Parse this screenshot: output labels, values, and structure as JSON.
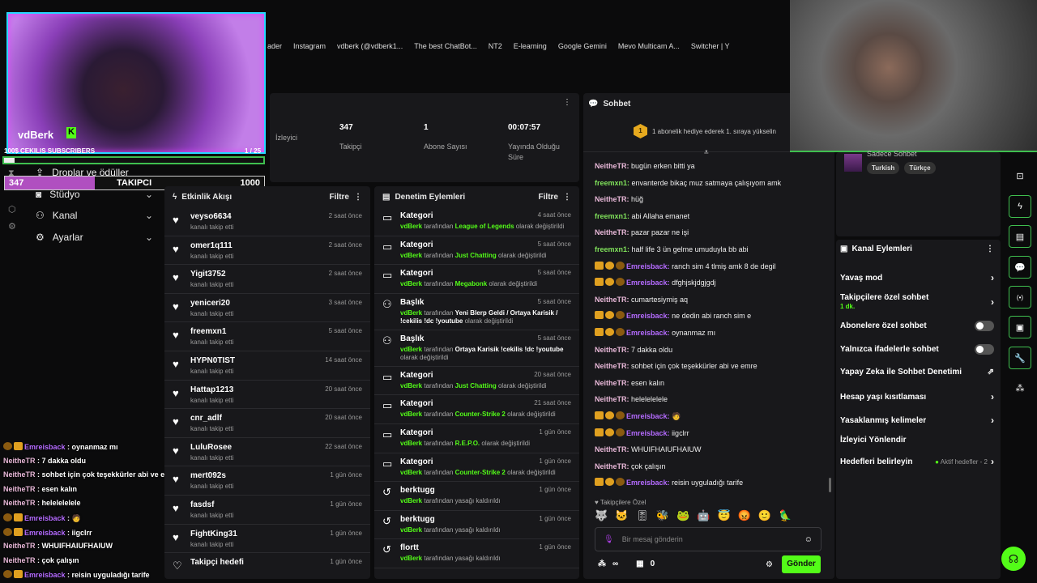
{
  "bookmarks": [
    "ader",
    "Instagram",
    "vdberk (@vdberk1...",
    "The best ChatBot...",
    "NT2",
    "E-learning",
    "Google Gemini",
    "Mevo Multicam A...",
    "Switcher | Y"
  ],
  "overlay": {
    "streamer": "vdBerk",
    "goal_label": "100$ CEKILIS SUBSCRIBERS",
    "goal_count": "1 / 25",
    "goal_progress": 0.04,
    "follower_current": "347",
    "follower_label": "TAKIPCI",
    "follower_target": "1000",
    "follower_progress": 0.347
  },
  "nav": [
    "Droplar ve ödüller",
    "Stüdyo",
    "Kanal",
    "Ayarlar"
  ],
  "stats": [
    {
      "value": "",
      "label": "İzleyici"
    },
    {
      "value": "347",
      "label": "Takipçi"
    },
    {
      "value": "1",
      "label": "Abone Sayısı"
    },
    {
      "value": "00:07:57",
      "label": "Yayında Olduğu Süre"
    }
  ],
  "activity": {
    "title": "Etkinlik Akışı",
    "filter": "Filtre",
    "items": [
      {
        "name": "veyso6634",
        "sub": "kanalı takip etti",
        "time": "2 saat önce"
      },
      {
        "name": "omer1q111",
        "sub": "kanalı takip etti",
        "time": "2 saat önce"
      },
      {
        "name": "Yigit3752",
        "sub": "kanalı takip etti",
        "time": "2 saat önce"
      },
      {
        "name": "yeniceri20",
        "sub": "kanalı takip etti",
        "time": "3 saat önce"
      },
      {
        "name": "freemxn1",
        "sub": "kanalı takip etti",
        "time": "5 saat önce"
      },
      {
        "name": "HYPN0TIST",
        "sub": "kanalı takip etti",
        "time": "14 saat önce"
      },
      {
        "name": "Hattap1213",
        "sub": "kanalı takip etti",
        "time": "20 saat önce"
      },
      {
        "name": "cnr_adlf",
        "sub": "kanalı takip etti",
        "time": "20 saat önce"
      },
      {
        "name": "LuluRosee",
        "sub": "kanalı takip etti",
        "time": "22 saat önce"
      },
      {
        "name": "mert092s",
        "sub": "kanalı takip etti",
        "time": "1 gün önce"
      },
      {
        "name": "fasdsf",
        "sub": "kanalı takip etti",
        "time": "1 gün önce"
      },
      {
        "name": "FightKing31",
        "sub": "kanalı takip etti",
        "time": "1 gün önce"
      },
      {
        "name": "Takipçi hedefi",
        "sub": "",
        "time": "1 gün önce"
      }
    ]
  },
  "moderation": {
    "title": "Denetim Eylemleri",
    "filter": "Filtre",
    "by": "vdBerk",
    "tarafindan": "tarafından",
    "items": [
      {
        "type": "Kategori",
        "value": "League of Legends",
        "suffix": "olarak değiştirildi",
        "time": "4 saat önce"
      },
      {
        "type": "Kategori",
        "value": "Just Chatting",
        "suffix": "olarak değiştirildi",
        "time": "5 saat önce"
      },
      {
        "type": "Kategori",
        "value": "Megabonk",
        "suffix": "olarak değiştirildi",
        "time": "5 saat önce"
      },
      {
        "type": "Başlık",
        "value": "Yeni Blerp Geldi / Ortaya Karisik / !cekilis !dc !youtube",
        "suffix": "olarak değiştirildi",
        "time": "5 saat önce"
      },
      {
        "type": "Başlık",
        "value": "Ortaya Karisik !cekilis !dc !youtube",
        "suffix": "olarak değiştirildi",
        "time": "5 saat önce"
      },
      {
        "type": "Kategori",
        "value": "Just Chatting",
        "suffix": "olarak değiştirildi",
        "time": "20 saat önce"
      },
      {
        "type": "Kategori",
        "value": "Counter-Strike 2",
        "suffix": "olarak değiştirildi",
        "time": "21 saat önce"
      },
      {
        "type": "Kategori",
        "value": "R.E.P.O.",
        "suffix": "olarak değiştirildi",
        "time": "1 gün önce"
      },
      {
        "type": "Kategori",
        "value": "Counter-Strike 2",
        "suffix": "olarak değiştirildi",
        "time": "1 gün önce"
      },
      {
        "type": "berktugg",
        "value": "",
        "suffix": "yasağı kaldırıldı",
        "time": "1 gün önce"
      },
      {
        "type": "berktugg",
        "value": "",
        "suffix": "yasağı kaldırıldı",
        "time": "1 gün önce"
      },
      {
        "type": "flortt",
        "value": "",
        "suffix": "yasağı kaldırıldı",
        "time": "1 gün önce"
      }
    ]
  },
  "chat": {
    "title": "Sohbet",
    "promo_rank": "1",
    "promo": "1 abonelik hediye ederek 1. sıraya yükselin",
    "messages": [
      {
        "user": "NeitheTR",
        "c": "u1",
        "badges": 0,
        "text": "bugün erken bitti ya"
      },
      {
        "user": "freemxn1",
        "c": "u2",
        "badges": 0,
        "text": "envanterde bikaç muz satmaya çalışıyom amk"
      },
      {
        "user": "NeitheTR",
        "c": "u1",
        "badges": 0,
        "text": "hüğ"
      },
      {
        "user": "freemxn1",
        "c": "u2",
        "badges": 0,
        "text": "abi Allaha emanet"
      },
      {
        "user": "NeitheTR",
        "c": "u1",
        "badges": 0,
        "text": "pazar pazar ne işi"
      },
      {
        "user": "freemxn1",
        "c": "u2",
        "badges": 0,
        "text": "half life 3 ün gelme umuduyla bb abi"
      },
      {
        "user": "Emreisback",
        "c": "u3",
        "badges": 1,
        "text": "ranch sim 4 tlmiş amk 8 de degil"
      },
      {
        "user": "Emreisback",
        "c": "u3",
        "badges": 1,
        "text": "dfghjskjdgjgdj"
      },
      {
        "user": "NeitheTR",
        "c": "u1",
        "badges": 0,
        "text": "cumartesiymiş aq"
      },
      {
        "user": "Emreisback",
        "c": "u3",
        "badges": 1,
        "text": "ne dedin abi ranch sim e"
      },
      {
        "user": "Emreisback",
        "c": "u3",
        "badges": 1,
        "text": "oynanmaz mı"
      },
      {
        "user": "NeitheTR",
        "c": "u1",
        "badges": 0,
        "text": "7 dakka oldu"
      },
      {
        "user": "NeitheTR",
        "c": "u1",
        "badges": 0,
        "text": "sohbet için çok teşekkürler abi ve emre"
      },
      {
        "user": "NeitheTR",
        "c": "u1",
        "badges": 0,
        "text": "esen kalın"
      },
      {
        "user": "NeitheTR",
        "c": "u1",
        "badges": 0,
        "text": "helelelelele"
      },
      {
        "user": "Emreisback",
        "c": "u3",
        "badges": 1,
        "text": "🧑"
      },
      {
        "user": "Emreisback",
        "c": "u3",
        "badges": 1,
        "text": "iigclrr"
      },
      {
        "user": "NeitheTR",
        "c": "u1",
        "badges": 0,
        "text": "WHUIFHAIUFHAIUW"
      },
      {
        "user": "NeitheTR",
        "c": "u1",
        "badges": 0,
        "text": "çok çalışın"
      },
      {
        "user": "Emreisback",
        "c": "u3",
        "badges": 1,
        "text": "reisin uyguladığı tarife"
      }
    ],
    "emote_label": "Takipçilere Özel",
    "emotes": [
      "🐺",
      "🐱",
      "🎚",
      "🐝",
      "🐸",
      "🤖",
      "😇",
      "😡",
      "🙂",
      "🦜"
    ],
    "placeholder": "Bir mesaj gönderin",
    "points": "∞",
    "shop_count": "0",
    "send": "Gönder"
  },
  "overlay_chat": [
    {
      "user": "Emreisback",
      "c": "u3",
      "text": "oynanmaz mı"
    },
    {
      "user": "NeitheTR",
      "c": "u1",
      "text": "7 dakka oldu"
    },
    {
      "user": "NeitheTR",
      "c": "u1",
      "text": "sohbet için çok teşekkürler abi ve emre"
    },
    {
      "user": "NeitheTR",
      "c": "u1",
      "text": "esen kalın"
    },
    {
      "user": "NeitheTR",
      "c": "u1",
      "text": "helelelelele"
    },
    {
      "user": "Emreisback",
      "c": "u3",
      "text": "🧑"
    },
    {
      "user": "Emreisback",
      "c": "u3",
      "text": "iigclrr"
    },
    {
      "user": "NeitheTR",
      "c": "u1",
      "text": "WHUIFHAIUFHAIUW"
    },
    {
      "user": "NeitheTR",
      "c": "u1",
      "text": "çok çalışın"
    },
    {
      "user": "Emreisback",
      "c": "u3",
      "text": "reisin uyguladığı tarife"
    }
  ],
  "stream_info": {
    "category": "Sadece Sohbet",
    "tags": [
      "Turkish",
      "Türkçe"
    ]
  },
  "channel_actions": {
    "title": "Kanal Eylemleri",
    "slow": "Yavaş mod",
    "followers": "Takipçilere özel sohbet",
    "followers_sub": "1 dk.",
    "subs": "Abonelere özel sohbet",
    "emotes": "Yalnızca ifadelerle sohbet",
    "ai": "Yapay Zeka ile Sohbet Denetimi",
    "age": "Hesap yaşı kısıtlaması",
    "banned": "Yasaklanmış kelimeler",
    "raid": "İzleyici Yönlendir",
    "goals": "Hedefleri belirleyin",
    "goals_sub": "Aktif hedefler - 2"
  },
  "colors": {
    "accent": "#53fc18",
    "panel": "#18181b"
  }
}
